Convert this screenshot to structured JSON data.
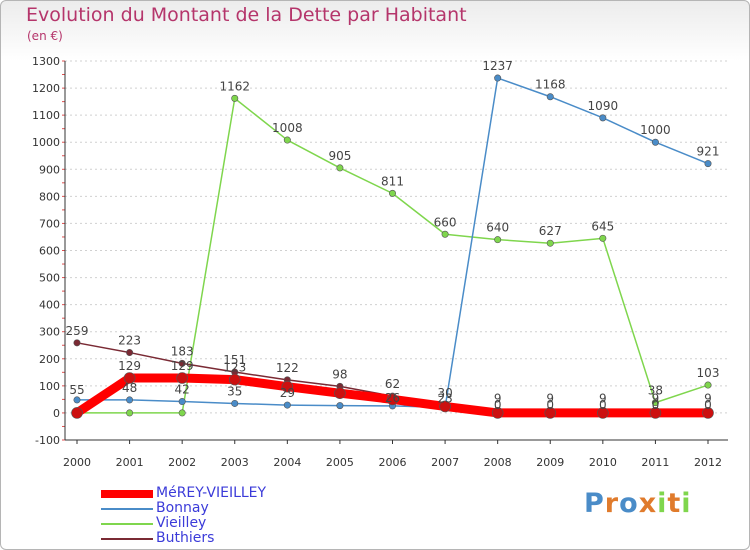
{
  "chart_data": {
    "type": "line",
    "title": "Evolution du Montant de la Dette par Habitant",
    "subtitle": "(en €)",
    "x": [
      "2000",
      "2001",
      "2002",
      "2003",
      "2004",
      "2005",
      "2006",
      "2007",
      "2008",
      "2009",
      "2010",
      "2011",
      "2012"
    ],
    "ylim": [
      -100,
      1300
    ],
    "yticks": [
      -100,
      0,
      100,
      200,
      300,
      400,
      500,
      600,
      700,
      800,
      900,
      1000,
      1100,
      1200,
      1300
    ],
    "grid": "horizontal dotted",
    "legend_position": "bottom-left",
    "series": [
      {
        "name": "MéREY-VIEILLEY",
        "color": "#ff0000",
        "values": [
          0,
          129,
          129,
          123,
          97,
          73,
          50,
          24,
          0,
          0,
          0,
          0,
          0
        ],
        "labels": [
          "",
          "129",
          "129",
          "123",
          "",
          "",
          "",
          "",
          "",
          "",
          "",
          "",
          ""
        ]
      },
      {
        "name": "Bonnay",
        "color": "#4a8cc8",
        "values": [
          48,
          48,
          42,
          35,
          29,
          27,
          26,
          20,
          1237,
          1168,
          1090,
          1000,
          921
        ],
        "labels": [
          "",
          "48",
          "42",
          "35",
          "29",
          "",
          "",
          "",
          "1237",
          "1168",
          "1090",
          "1000",
          "921"
        ]
      },
      {
        "name": "Vieilley",
        "color": "#7fd64d",
        "values": [
          0,
          0,
          0,
          1162,
          1008,
          905,
          811,
          660,
          640,
          627,
          645,
          38,
          103
        ],
        "labels": [
          "",
          "",
          "",
          "1162",
          "1008",
          "905",
          "811",
          "660",
          "640",
          "627",
          "645",
          "38",
          "103"
        ]
      },
      {
        "name": "Buthiers",
        "color": "#7a2a34",
        "values": [
          259,
          223,
          183,
          151,
          122,
          98,
          62,
          30,
          9,
          9,
          9,
          9,
          9
        ],
        "labels": [
          "259",
          "223",
          "183",
          "151",
          "122",
          "98",
          "62",
          "30",
          "9",
          "9",
          "9",
          "9",
          "9"
        ]
      }
    ],
    "extra_labels": [
      "55",
      "23",
      "26",
      "0",
      "0",
      "0",
      "0",
      "0"
    ]
  },
  "logo": {
    "text": "Proxiti",
    "colors": [
      "#4a8cc8",
      "#e07b2c",
      "#4a8cc8",
      "#e07b2c",
      "#7fd64d",
      "#e07b2c",
      "#7fd64d"
    ]
  }
}
